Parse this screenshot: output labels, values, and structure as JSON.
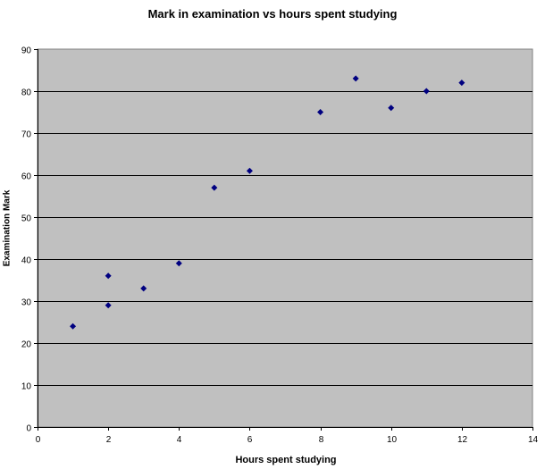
{
  "chart_data": {
    "type": "scatter",
    "title": "Mark in examination vs hours spent studying",
    "xlabel": "Hours spent studying",
    "ylabel": "Examination Mark",
    "xlim": [
      0,
      14
    ],
    "ylim": [
      0,
      90
    ],
    "xticks": [
      0,
      2,
      4,
      6,
      8,
      10,
      12,
      14
    ],
    "yticks": [
      0,
      10,
      20,
      30,
      40,
      50,
      60,
      70,
      80,
      90
    ],
    "grid": "horizontal major gridlines",
    "legend": "none",
    "series": [
      {
        "name": "Mark",
        "marker": "diamond",
        "color": "#000080",
        "x": [
          1,
          2,
          2,
          3,
          4,
          5,
          6,
          8,
          9,
          10,
          11,
          12
        ],
        "y": [
          24,
          36,
          29,
          33,
          39,
          57,
          61,
          75,
          83,
          76,
          80,
          82
        ]
      }
    ],
    "colors": {
      "plot_background": "#c0c0c0",
      "gridline": "#000000",
      "marker": "#000080"
    }
  }
}
